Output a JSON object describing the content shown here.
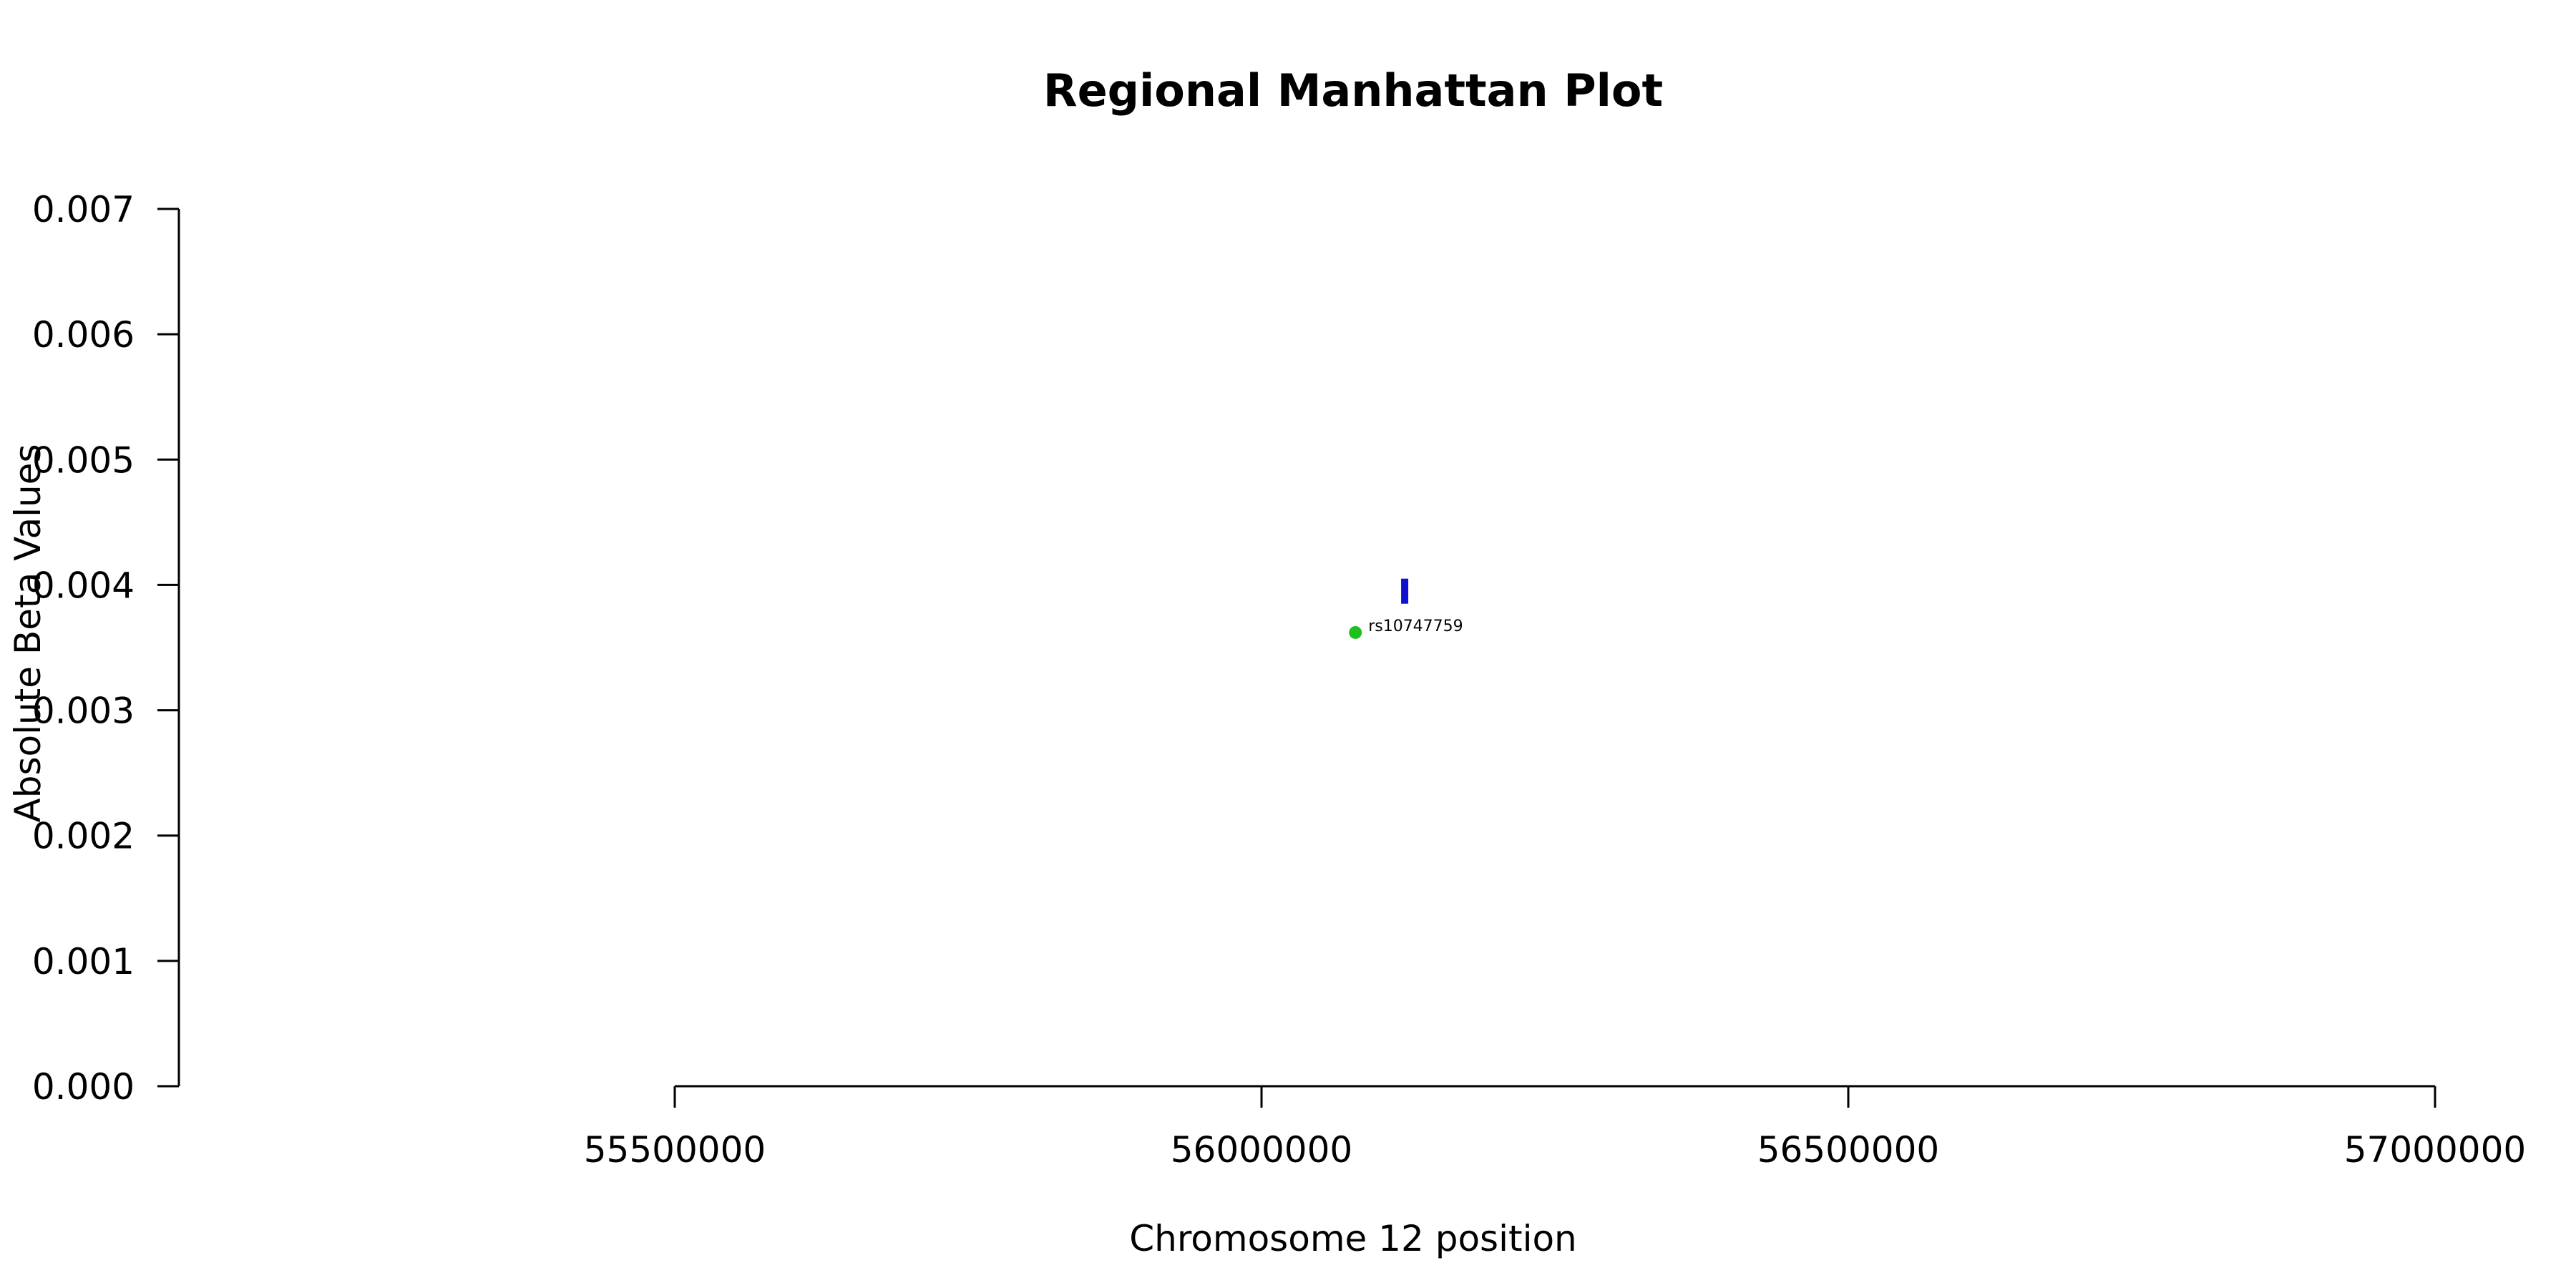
{
  "chart_data": {
    "type": "scatter",
    "title": "Regional Manhattan Plot",
    "xlabel": "Chromosome 12 position",
    "ylabel": "Absolute Beta Values",
    "xlim": [
      55500000,
      57000000
    ],
    "ylim": [
      0,
      0.007
    ],
    "x_ticks": [
      55500000,
      56000000,
      56500000,
      57000000
    ],
    "x_tick_labels": [
      "55500000",
      "56000000",
      "56500000",
      "57000000"
    ],
    "y_ticks": [
      0,
      0.001,
      0.002,
      0.003,
      0.004,
      0.005,
      0.006,
      0.007
    ],
    "y_tick_labels": [
      "0.000",
      "0.001",
      "0.002",
      "0.003",
      "0.004",
      "0.005",
      "0.006",
      "0.007"
    ],
    "grid": false,
    "points": [
      {
        "x": 56080000,
        "y": 0.00362,
        "label": "rs10747759",
        "color": "#1ec01e",
        "marker": "circle"
      },
      {
        "x": 56122000,
        "y": 0.00395,
        "label": "",
        "color": "#1010d0",
        "marker": "vbar",
        "y_extent": [
          0.00385,
          0.00405
        ]
      }
    ]
  }
}
